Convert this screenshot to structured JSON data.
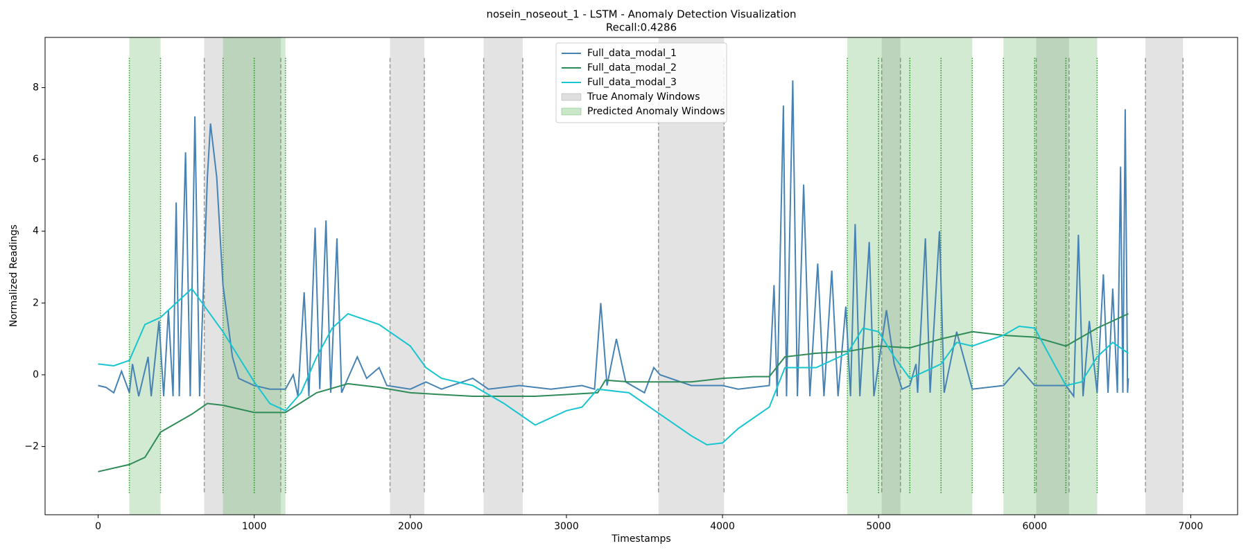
{
  "chart_data": {
    "type": "line",
    "title": "nosein_noseout_1 - LSTM - Anomaly Detection Visualization",
    "subtitle": "Recall:0.4286",
    "x_label": "Timestamps",
    "y_label": "Normalized Readings",
    "xlim": [
      -340,
      7300
    ],
    "ylim": [
      -3.9,
      9.4
    ],
    "xticks": [
      0,
      1000,
      2000,
      3000,
      4000,
      5000,
      6000,
      7000
    ],
    "yticks": [
      {
        "value": -2,
        "label": "−2"
      },
      0,
      2,
      4,
      6,
      8
    ],
    "legend": "upper center",
    "series": [
      {
        "name": "Full_data_modal_1",
        "color": "#4682b4",
        "x": [
          0,
          50,
          100,
          150,
          200,
          220,
          260,
          320,
          340,
          390,
          420,
          450,
          480,
          500,
          520,
          560,
          590,
          620,
          650,
          700,
          720,
          760,
          800,
          860,
          900,
          1000,
          1100,
          1200,
          1250,
          1280,
          1320,
          1350,
          1390,
          1420,
          1460,
          1490,
          1530,
          1560,
          1660,
          1720,
          1800,
          1850,
          2000,
          2100,
          2200,
          2400,
          2500,
          2700,
          2900,
          3100,
          3180,
          3220,
          3260,
          3320,
          3380,
          3500,
          3560,
          3600,
          3800,
          4000,
          4100,
          4300,
          4330,
          4350,
          4390,
          4410,
          4450,
          4480,
          4520,
          4560,
          4610,
          4650,
          4700,
          4740,
          4790,
          4820,
          4850,
          4880,
          4940,
          4970,
          5050,
          5100,
          5150,
          5200,
          5240,
          5250,
          5300,
          5330,
          5390,
          5420,
          5500,
          5600,
          5800,
          5900,
          6000,
          6200,
          6250,
          6280,
          6310,
          6350,
          6400,
          6440,
          6470,
          6500,
          6530,
          6550,
          6565,
          6580,
          6595,
          6600
        ],
        "values": [
          -0.3,
          -0.35,
          -0.5,
          0.1,
          -0.5,
          0.3,
          -0.6,
          0.5,
          -0.6,
          1.5,
          -0.6,
          1.8,
          -0.6,
          4.8,
          -0.6,
          6.2,
          -0.6,
          7.2,
          -0.6,
          5.5,
          7.0,
          5.5,
          2.5,
          0.5,
          -0.1,
          -0.3,
          -0.4,
          -0.4,
          0.0,
          -0.6,
          2.3,
          -0.6,
          4.1,
          -0.4,
          4.3,
          -0.5,
          3.8,
          -0.5,
          0.5,
          -0.1,
          0.2,
          -0.3,
          -0.4,
          -0.2,
          -0.4,
          -0.1,
          -0.4,
          -0.3,
          -0.4,
          -0.3,
          -0.4,
          2.0,
          -0.3,
          1.0,
          -0.2,
          -0.5,
          0.2,
          0.0,
          -0.3,
          -0.3,
          -0.4,
          -0.3,
          2.5,
          -0.6,
          7.5,
          -0.6,
          8.2,
          -0.6,
          5.3,
          -0.6,
          3.1,
          -0.6,
          2.9,
          -0.6,
          1.9,
          -0.6,
          4.2,
          -0.6,
          3.7,
          -0.6,
          1.8,
          0.3,
          -0.4,
          -0.3,
          0.3,
          -0.5,
          3.8,
          -0.5,
          4.0,
          -0.5,
          1.2,
          -0.4,
          -0.3,
          0.2,
          -0.3,
          -0.3,
          -0.6,
          3.9,
          -0.6,
          1.5,
          -0.5,
          2.8,
          -0.5,
          2.4,
          -0.5,
          5.8,
          -0.5,
          7.4,
          -0.5,
          -0.1
        ]
      },
      {
        "name": "Full_data_modal_2",
        "color": "#2e8b57",
        "x": [
          0,
          200,
          300,
          400,
          600,
          700,
          800,
          1000,
          1200,
          1400,
          1600,
          1800,
          2000,
          2200,
          2400,
          2600,
          2800,
          3000,
          3200,
          3250,
          3400,
          3600,
          3800,
          4000,
          4200,
          4300,
          4400,
          4600,
          4800,
          5000,
          5200,
          5400,
          5600,
          5800,
          6000,
          6200,
          6400,
          6600
        ],
        "values": [
          -2.7,
          -2.5,
          -2.3,
          -1.6,
          -1.1,
          -0.8,
          -0.85,
          -1.05,
          -1.05,
          -0.5,
          -0.25,
          -0.35,
          -0.5,
          -0.55,
          -0.6,
          -0.6,
          -0.6,
          -0.55,
          -0.5,
          -0.15,
          -0.2,
          -0.2,
          -0.2,
          -0.1,
          -0.05,
          -0.05,
          0.5,
          0.6,
          0.65,
          0.8,
          0.75,
          1.0,
          1.2,
          1.1,
          1.05,
          0.8,
          1.3,
          1.7
        ]
      },
      {
        "name": "Full_data_modal_3",
        "color": "#17c5d0",
        "x": [
          0,
          100,
          200,
          300,
          400,
          500,
          600,
          700,
          800,
          900,
          1000,
          1100,
          1200,
          1300,
          1400,
          1500,
          1600,
          1800,
          2000,
          2100,
          2200,
          2400,
          2600,
          2800,
          3000,
          3100,
          3200,
          3400,
          3600,
          3800,
          3900,
          4000,
          4100,
          4300,
          4400,
          4600,
          4800,
          4900,
          5000,
          5100,
          5200,
          5400,
          5500,
          5600,
          5800,
          5900,
          6000,
          6100,
          6200,
          6300,
          6400,
          6500,
          6600
        ],
        "values": [
          0.3,
          0.25,
          0.4,
          1.4,
          1.6,
          2.0,
          2.4,
          1.8,
          1.2,
          0.5,
          -0.2,
          -0.8,
          -1.0,
          -0.5,
          0.5,
          1.3,
          1.7,
          1.4,
          0.8,
          0.2,
          -0.1,
          -0.3,
          -0.8,
          -1.4,
          -1.0,
          -0.9,
          -0.4,
          -0.5,
          -1.1,
          -1.7,
          -1.95,
          -1.9,
          -1.5,
          -0.9,
          0.2,
          0.2,
          0.6,
          1.3,
          1.2,
          0.5,
          -0.1,
          0.3,
          0.9,
          0.8,
          1.1,
          1.35,
          1.3,
          0.5,
          -0.3,
          -0.2,
          0.5,
          0.9,
          0.6
        ]
      }
    ],
    "true_windows": {
      "name": "True Anomaly Windows",
      "color": "#808080",
      "ranges": [
        [
          680,
          1170
        ],
        [
          1870,
          2090
        ],
        [
          2470,
          2720
        ],
        [
          3590,
          4010
        ],
        [
          5020,
          5140
        ],
        [
          6010,
          6220
        ],
        [
          6710,
          6950
        ]
      ]
    },
    "predicted_windows": {
      "name": "Predicted Anomaly Windows",
      "color": "#2ca02c",
      "ranges": [
        [
          200,
          400
        ],
        [
          800,
          1000
        ],
        [
          1000,
          1200
        ],
        [
          4800,
          5000
        ],
        [
          5000,
          5200
        ],
        [
          5200,
          5400
        ],
        [
          5400,
          5600
        ],
        [
          5800,
          6000
        ],
        [
          6000,
          6200
        ],
        [
          6200,
          6400
        ]
      ]
    }
  }
}
